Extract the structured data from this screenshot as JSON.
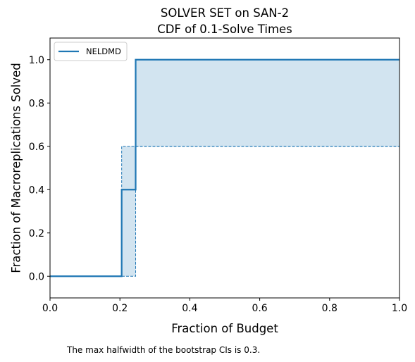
{
  "chart_data": {
    "type": "line",
    "title": "SOLVER SET on SAN-2",
    "subtitle": "CDF of 0.1-Solve Times",
    "xlabel": "Fraction of Budget",
    "ylabel": "Fraction of Macroreplications Solved",
    "xlim": [
      0,
      1
    ],
    "ylim": [
      -0.1,
      1.1
    ],
    "x_ticks": [
      0.0,
      0.2,
      0.4,
      0.6,
      0.8,
      1.0
    ],
    "x_tick_labels": [
      "0.0",
      "0.2",
      "0.4",
      "0.6",
      "0.8",
      "1.0"
    ],
    "y_ticks": [
      0.0,
      0.2,
      0.4,
      0.6,
      0.8,
      1.0
    ],
    "y_tick_labels": [
      "0.0",
      "0.2",
      "0.4",
      "0.6",
      "0.8",
      "1.0"
    ],
    "grid": false,
    "legend_position": "top-left",
    "series": [
      {
        "name": "NELDMD",
        "color": "#1f77b4",
        "step_x": [
          0.0,
          0.205,
          0.205,
          0.245,
          0.245,
          1.0
        ],
        "step_y": [
          0.0,
          0.0,
          0.4,
          0.4,
          1.0,
          1.0
        ],
        "ci_lower_x": [
          0.0,
          0.245,
          0.245,
          1.0
        ],
        "ci_lower_y": [
          0.0,
          0.0,
          0.6,
          0.6
        ],
        "ci_upper_x": [
          0.0,
          0.205,
          0.205,
          1.0
        ],
        "ci_upper_y": [
          0.0,
          0.0,
          0.6,
          0.6
        ],
        "ci_upper_tail_x": [
          0.245,
          1.0
        ],
        "ci_upper_tail_y": [
          1.0,
          1.0
        ]
      }
    ],
    "annotation": "The max halfwidth of the bootstrap CIs is 0.3."
  }
}
